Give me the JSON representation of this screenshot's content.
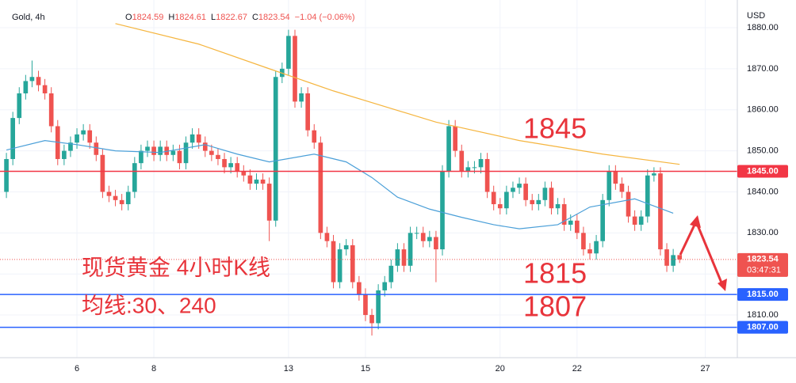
{
  "chart_data": {
    "type": "candlestick",
    "header": {
      "symbol": "Gold, 4h",
      "fields": [
        {
          "key": "O",
          "value": "1824.59"
        },
        {
          "key": "H",
          "value": "1824.61"
        },
        {
          "key": "L",
          "value": "1822.67"
        },
        {
          "key": "C",
          "value": "1823.54"
        }
      ],
      "change": "−1.04 (−0.06%)"
    },
    "currency": "USD",
    "up_color": "#26a69a",
    "down_color": "#ef5350",
    "open": [
      1840,
      1848,
      1858,
      1864,
      1867,
      1868,
      1866,
      1864,
      1856,
      1848,
      1850,
      1852,
      1854,
      1855,
      1852,
      1849,
      1840,
      1839,
      1838,
      1837,
      1840,
      1847,
      1850,
      1851,
      1849,
      1851,
      1849,
      1850,
      1847,
      1852,
      1854,
      1852,
      1850,
      1849,
      1848,
      1846,
      1847,
      1845,
      1844,
      1842,
      1843,
      1842,
      1833,
      1868,
      1870,
      1878,
      1862,
      1864,
      1855,
      1852,
      1830,
      1828,
      1818,
      1826,
      1827,
      1818,
      1815,
      1810,
      1808,
      1816,
      1818,
      1822,
      1826,
      1822,
      1830,
      1830,
      1828,
      1829,
      1826,
      1845,
      1856,
      1850,
      1845,
      1846,
      1846,
      1848,
      1840,
      1837,
      1836,
      1840,
      1841,
      1842,
      1838,
      1837,
      1838,
      1841,
      1836,
      1837,
      1832,
      1833,
      1830,
      1826,
      1825,
      1828,
      1838,
      1845,
      1842,
      1840,
      1834,
      1832,
      1834,
      1844,
      1844.5,
      1826,
      1822,
      1824.59
    ],
    "high": [
      1849.5,
      1859.5,
      1865.5,
      1868.5,
      1872,
      1869.5,
      1867.5,
      1865.5,
      1857.5,
      1851.5,
      1853.5,
      1855.5,
      1856.5,
      1856.5,
      1853.5,
      1850.5,
      1841.5,
      1840.5,
      1839.5,
      1841.5,
      1848.5,
      1851.5,
      1852.5,
      1852.5,
      1852.5,
      1852.5,
      1851.5,
      1851.5,
      1853.5,
      1855.5,
      1855.5,
      1853.5,
      1851.5,
      1850.5,
      1849.5,
      1848.5,
      1848.5,
      1846.5,
      1845.5,
      1844.5,
      1844.5,
      1843.5,
      1869.5,
      1871.5,
      1879.5,
      1879.5,
      1865.5,
      1865.5,
      1856.5,
      1853.5,
      1831.5,
      1829.5,
      1827.5,
      1828.5,
      1828.5,
      1819.5,
      1816.5,
      1811.5,
      1817.5,
      1819.5,
      1823.5,
      1827.5,
      1827.5,
      1831.5,
      1831.5,
      1831.5,
      1830.5,
      1830.5,
      1846.5,
      1857.5,
      1857.5,
      1851.5,
      1847.5,
      1847.5,
      1849.5,
      1849.5,
      1841.5,
      1838.5,
      1841.5,
      1842.5,
      1843.5,
      1843.5,
      1839.5,
      1839.5,
      1842.5,
      1842.5,
      1838.5,
      1838.5,
      1834.5,
      1834.5,
      1831.5,
      1827.5,
      1829.5,
      1839.5,
      1846.5,
      1846.5,
      1843.5,
      1841.5,
      1835.5,
      1835.5,
      1845.5,
      1846,
      1846,
      1827.5,
      1826.09,
      1824.61
    ],
    "low": [
      1838.5,
      1846.5,
      1856.5,
      1862.5,
      1865.5,
      1864.5,
      1862.5,
      1854.5,
      1846.5,
      1846.5,
      1848.5,
      1850.5,
      1852.5,
      1850.5,
      1847.5,
      1838.5,
      1837.5,
      1836.5,
      1835.5,
      1835.5,
      1838.5,
      1845.5,
      1848.5,
      1847.5,
      1847.5,
      1847.5,
      1847.5,
      1845.5,
      1845.5,
      1850.5,
      1850.5,
      1848.5,
      1847.5,
      1846.5,
      1844.5,
      1844.5,
      1843.5,
      1842.5,
      1840.5,
      1840.5,
      1840.5,
      1828,
      1831.5,
      1866.5,
      1868.5,
      1860.5,
      1860.5,
      1853.5,
      1850.5,
      1828.5,
      1826.5,
      1816.5,
      1816.5,
      1824.5,
      1816.5,
      1813.5,
      1808.5,
      1805,
      1806.5,
      1814.5,
      1816.5,
      1820.5,
      1820.5,
      1820.5,
      1828.5,
      1826.5,
      1826.5,
      1818,
      1824.5,
      1843.5,
      1848.5,
      1843.5,
      1843.5,
      1844.5,
      1844.5,
      1838.5,
      1835.5,
      1834.5,
      1834.5,
      1838.5,
      1839.5,
      1836.5,
      1835.5,
      1835.5,
      1836.5,
      1834.5,
      1834.5,
      1830.5,
      1830.5,
      1828.5,
      1824.5,
      1823.5,
      1823.5,
      1826.5,
      1836.5,
      1840.5,
      1838.5,
      1832.5,
      1830.5,
      1830.5,
      1832.5,
      1842.5,
      1824.5,
      1820.5,
      1820.5,
      1822.67
    ],
    "close": [
      1848,
      1858,
      1864,
      1867,
      1868,
      1866,
      1864,
      1856,
      1848,
      1850,
      1852,
      1854,
      1855,
      1852,
      1849,
      1840,
      1839,
      1838,
      1837,
      1840,
      1847,
      1850,
      1851,
      1849,
      1851,
      1849,
      1850,
      1847,
      1852,
      1854,
      1852,
      1850,
      1849,
      1848,
      1846,
      1847,
      1845,
      1844,
      1842,
      1843,
      1842,
      1833,
      1868,
      1870,
      1878,
      1862,
      1864,
      1855,
      1852,
      1830,
      1828,
      1818,
      1826,
      1827,
      1818,
      1815,
      1810,
      1808,
      1816,
      1818,
      1822,
      1826,
      1822,
      1830,
      1830,
      1828,
      1829,
      1826,
      1845,
      1856,
      1850,
      1845,
      1846,
      1846,
      1848,
      1840,
      1837,
      1836,
      1840,
      1841,
      1842,
      1838,
      1837,
      1838,
      1841,
      1836,
      1837,
      1832,
      1833,
      1830,
      1826,
      1825,
      1828,
      1838,
      1845,
      1842,
      1840,
      1834,
      1832,
      1834,
      1844,
      1844.5,
      1826,
      1822,
      1824.59,
      1823.54
    ],
    "moving_averages": [
      {
        "color": "#4a9fd8",
        "x": [
          0,
          6,
          11,
          17,
          24,
          31,
          36,
          41,
          48,
          53,
          57,
          61,
          66,
          71,
          76,
          80,
          86,
          91,
          98,
          104
        ],
        "values": [
          1850.2,
          1852.5,
          1851.5,
          1850,
          1849.6,
          1851.5,
          1849.2,
          1847.3,
          1849.2,
          1847.3,
          1843.5,
          1838.7,
          1835.8,
          1833.8,
          1832,
          1831,
          1832,
          1836.3,
          1838.3,
          1834.8
        ]
      },
      {
        "color": "#f5b53f",
        "x": [
          17,
          30,
          41,
          51,
          67,
          80,
          93,
          105
        ],
        "values": [
          1881,
          1876,
          1870,
          1864.6,
          1857,
          1852.5,
          1849.2,
          1846.7
        ]
      }
    ],
    "levels": [
      {
        "value": 1845,
        "label": "1845.00",
        "color": "#f23645"
      },
      {
        "value": 1815,
        "label": "1815.00",
        "color": "#2962ff"
      },
      {
        "value": 1807,
        "label": "1807.00",
        "color": "#2962ff"
      }
    ],
    "last_price": {
      "value": 1823.54,
      "label": "1823.54",
      "countdown": "03:47:31"
    },
    "annotations": [
      "1845",
      "1815",
      "1807",
      "现货黄金 4小时K线",
      "均线:30、240"
    ],
    "xlim": [
      -1,
      114
    ],
    "xticks": [
      {
        "value": 11,
        "label": "6"
      },
      {
        "value": 23,
        "label": "8"
      },
      {
        "value": 44,
        "label": "13"
      },
      {
        "value": 56,
        "label": "15"
      },
      {
        "value": 77,
        "label": "20"
      },
      {
        "value": 89,
        "label": "22"
      },
      {
        "value": 109,
        "label": "27"
      }
    ],
    "ylim": [
      1799.6,
      1886.75
    ],
    "yticks": [
      {
        "value": 1810,
        "label": "1810.00"
      },
      {
        "value": 1820,
        "label": "1820.00"
      },
      {
        "value": 1830,
        "label": "1830.00"
      },
      {
        "value": 1840,
        "label": "1840.00"
      },
      {
        "value": 1850,
        "label": "1850.00"
      },
      {
        "value": 1860,
        "label": "1860.00"
      },
      {
        "value": 1870,
        "label": "1870.00"
      },
      {
        "value": 1880,
        "label": "1880.00"
      }
    ],
    "grid": true
  }
}
